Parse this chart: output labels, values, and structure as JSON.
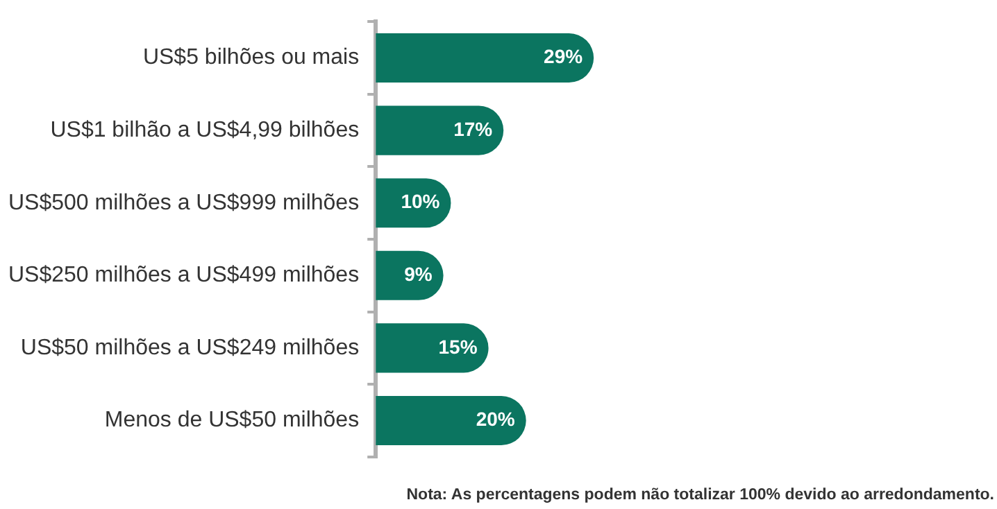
{
  "chart_data": {
    "type": "bar",
    "orientation": "horizontal",
    "categories": [
      "US$5 bilhões ou mais",
      "US$1 bilhão a US$4,99 bilhões",
      "US$500 milhões a US$999 milhões",
      "US$250 milhões a US$499 milhões",
      "US$50 milhões a US$249 milhões",
      "Menos de US$50 milhões"
    ],
    "values": [
      29,
      17,
      10,
      9,
      15,
      20
    ],
    "value_labels": [
      "29%",
      "17%",
      "10%",
      "9%",
      "15%",
      "20%"
    ],
    "color": "#0b7560",
    "annotations": [
      "Nota: As percentagens podem não totalizar 100% devido ao arredondamento."
    ]
  }
}
